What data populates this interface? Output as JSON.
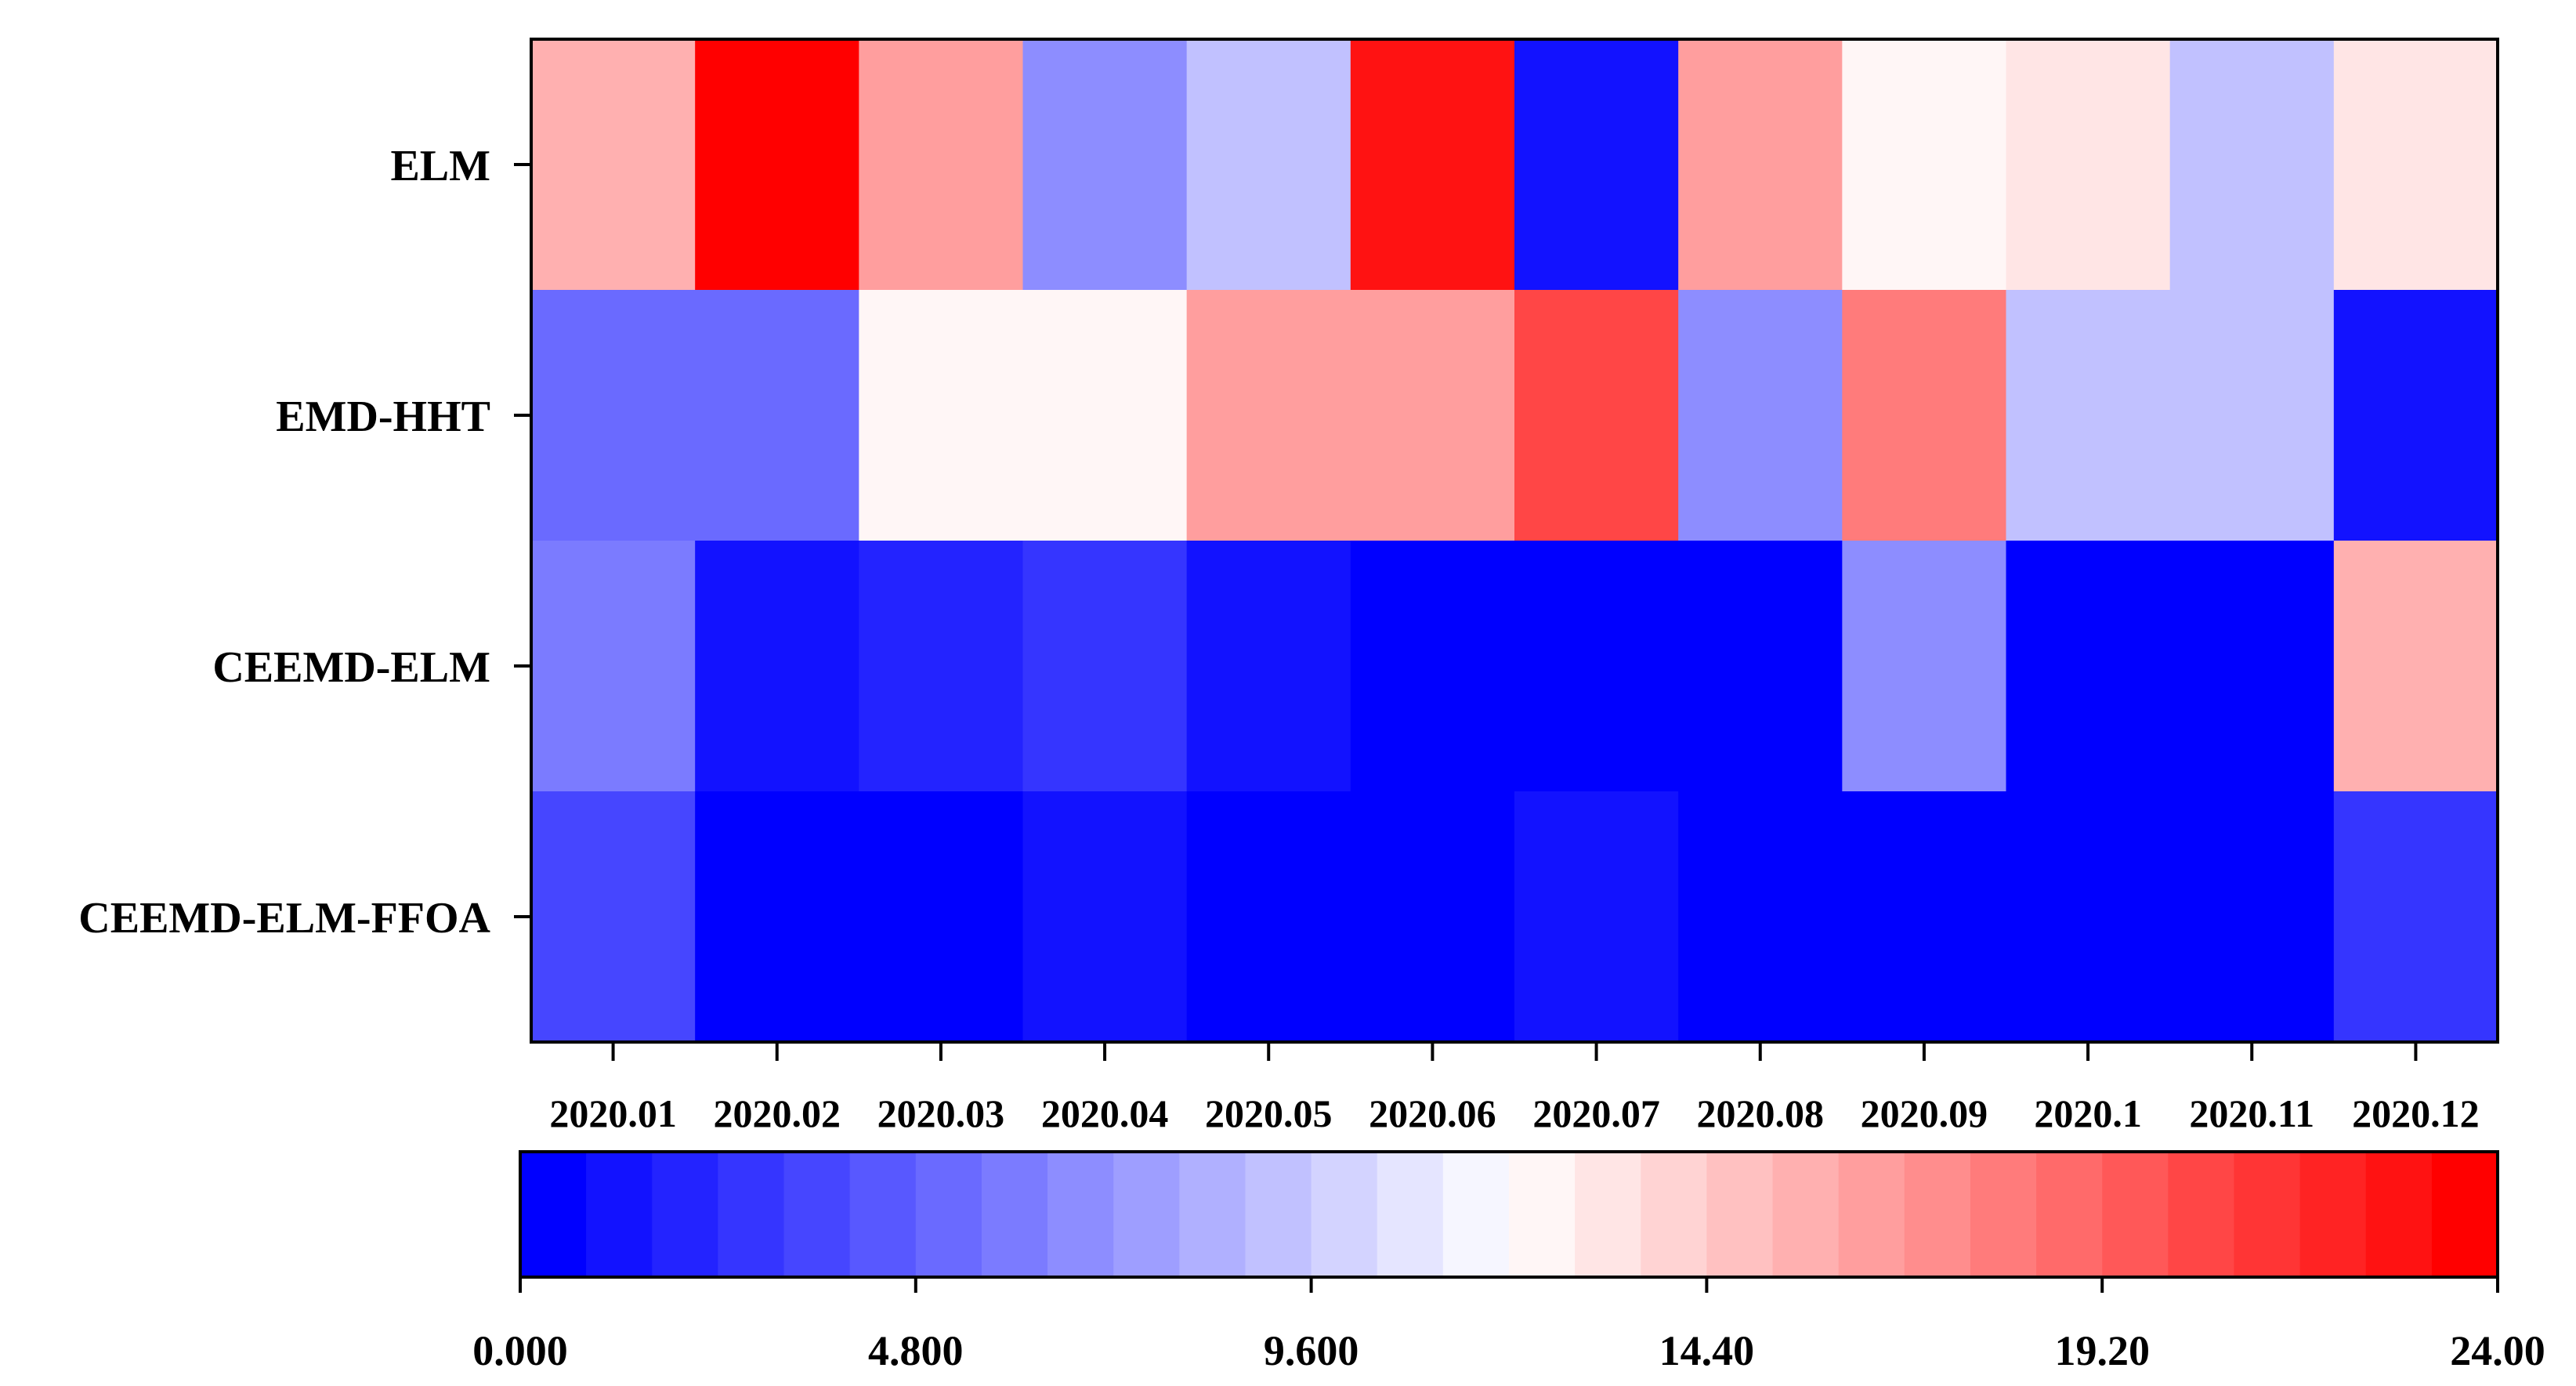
{
  "chart_data": {
    "type": "heatmap",
    "title": "",
    "xlabel": "",
    "ylabel": "",
    "x_categories": [
      "2020.01",
      "2020.02",
      "2020.03",
      "2020.04",
      "2020.05",
      "2020.06",
      "2020.07",
      "2020.08",
      "2020.09",
      "2020.1",
      "2020.11",
      "2020.12"
    ],
    "y_categories": [
      "ELM",
      "EMD-HHT",
      "CEEMD-ELM",
      "CEEMD-ELM-FFOA"
    ],
    "values": [
      [
        15.2,
        24.0,
        16.4,
        7.0,
        9.2,
        22.6,
        1.2,
        16.4,
        12.2,
        13.4,
        9.2,
        13.4
      ],
      [
        5.2,
        5.2,
        12.2,
        12.2,
        16.4,
        16.4,
        20.0,
        6.4,
        18.0,
        9.2,
        9.2,
        1.2
      ],
      [
        6.0,
        1.2,
        1.6,
        2.8,
        1.2,
        0.0,
        0.0,
        0.0,
        6.4,
        0.0,
        0.0,
        15.2
      ],
      [
        3.6,
        0.0,
        0.0,
        1.2,
        0.0,
        0.0,
        1.2,
        0.0,
        0.2,
        0.2,
        0.4,
        2.8
      ]
    ],
    "colorbar": {
      "min": 0.0,
      "max": 24.0,
      "bins": 30,
      "tick_labels": [
        "0.000",
        "4.800",
        "9.600",
        "14.40",
        "19.20",
        "24.00"
      ],
      "low_color": "#0000ff",
      "mid_color": "#ffffff",
      "high_color": "#ff0000",
      "orientation": "horizontal",
      "placement": "bottom"
    },
    "grid": false
  }
}
